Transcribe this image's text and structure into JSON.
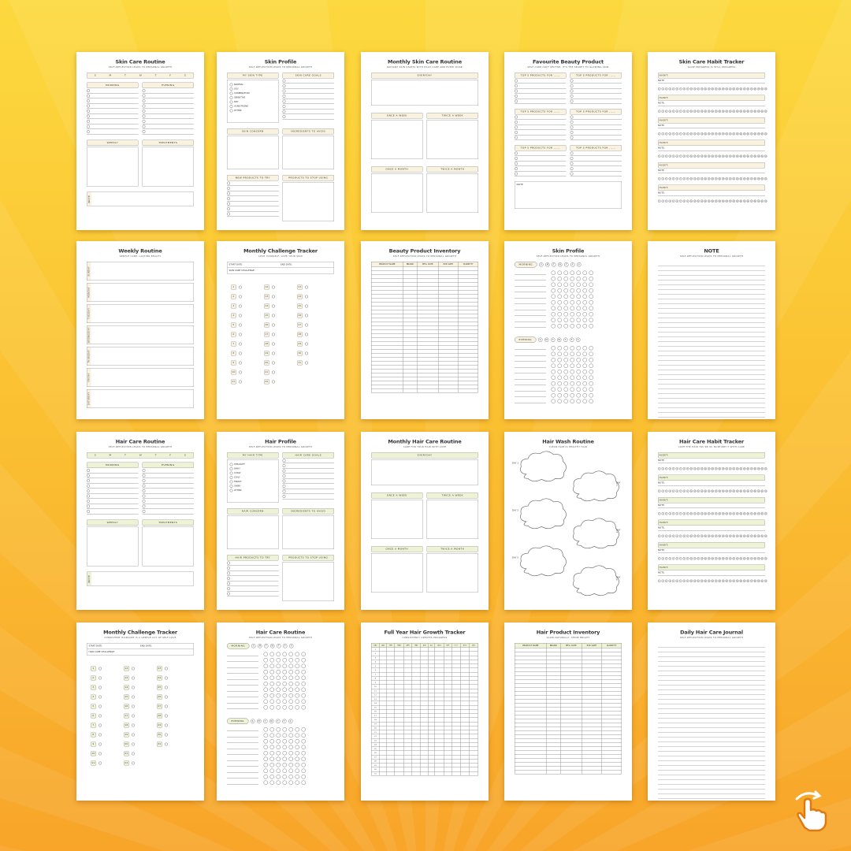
{
  "colors": {
    "skin_accent": "#f8f2df",
    "hair_accent": "#eef3d6",
    "background_top": "#fcd93e",
    "background_bottom": "#f8a52a"
  },
  "pages": [
    {
      "theme": "skin",
      "layout": "routine",
      "title": "Skin Care Routine",
      "subtitle": "SELF-REFLECTION LEADS TO PERSONAL GROWTH",
      "days": [
        "S",
        "M",
        "T",
        "W",
        "T",
        "F",
        "S"
      ],
      "morning": "MORNING",
      "evening": "EVENING",
      "weekly": "WEEKLY",
      "treatments": "TREATMENTS",
      "note": "NOTE"
    },
    {
      "theme": "skin",
      "layout": "profile",
      "title": "Skin Profile",
      "subtitle": "SELF-REFLECTION LEADS TO PERSONAL GROWTH",
      "type_header": "MY SKIN TYPE",
      "type_options": [
        "NORMAL",
        "OILY",
        "COMBINATION",
        "SENSITIVE",
        "DRY",
        "ACNE PRONE",
        "OTHER"
      ],
      "goals": "SKIN CARE GOALS",
      "concern": "SKIN CONCERN",
      "avoid": "INGREDIENTS TO AVOID",
      "try": "NEW PRODUCTS TO TRY",
      "stop": "PRODUCTS TO STOP USING"
    },
    {
      "theme": "skin",
      "layout": "monthly",
      "title": "Monthly Skin Care Routine",
      "subtitle": "RADIANT SKIN STARTS WITH DAILY CARE AND EVERY DOSE",
      "sections": [
        "EVERYDAY",
        "ONCE A WEEK",
        "TWICE A WEEK",
        "ONCE A MONTH",
        "TWICE A MONTH"
      ]
    },
    {
      "theme": "skin",
      "layout": "favourites",
      "title": "Favourite Beauty Product",
      "subtitle": "SELF-CARE ISN'T SELFISH, IT'S THE SECRET TO GLOWING SKIN",
      "headers": [
        "TOP 5 PRODUCTS FOR ......",
        "TOP 5 PRODUCTS FOR ......",
        "TOP 5 PRODUCTS FOR ......",
        "TOP 5 PRODUCTS FOR ......",
        "TOP 5 PRODUCTS FOR ......",
        "TOP 5 PRODUCTS FOR ......"
      ],
      "note": "NOTE"
    },
    {
      "theme": "skin",
      "layout": "habit",
      "title": "Skin Care Habit Tracker",
      "subtitle": "SLOW PROGRESS IS STILL PROGRESS",
      "habit": "HABIT:",
      "note": "NOTE:"
    },
    {
      "theme": "skin",
      "layout": "weekly",
      "title": "Weekly Routine",
      "subtitle": "GENTLE CARE, LASTING BEAUTY",
      "days": [
        "SUNDAY",
        "MONDAY",
        "TUESDAY",
        "WEDNESDAY",
        "THURSDAY",
        "FRIDAY",
        "SATURDAY"
      ]
    },
    {
      "theme": "skin",
      "layout": "challenge",
      "title": "Monthly Challenge Tracker",
      "subtitle": "LOVE YOURSELF, LOVE YOUR SKIN",
      "start": "START DATE:",
      "end": "END DATE:",
      "challenge": "SKIN CARE CHALLENGE:"
    },
    {
      "theme": "skin",
      "layout": "table",
      "title": "Beauty Product Inventory",
      "subtitle": "SELF-REFLECTION LEADS TO PERSONAL GROWTH",
      "columns": [
        "PRODUCT NAME",
        "BRAND",
        "MFG. DATE",
        "EXP. DATE",
        "QUANTITY"
      ]
    },
    {
      "theme": "skin",
      "layout": "circles",
      "title": "Skin Profile",
      "subtitle": "SELF-REFLECTION LEADS TO PERSONAL GROWTH",
      "morning": "MORNING",
      "evening": "EVENING",
      "days": [
        "S",
        "M",
        "T",
        "W",
        "T",
        "F",
        "S"
      ]
    },
    {
      "theme": "skin",
      "layout": "lines",
      "title": "NOTE",
      "subtitle": "SELF-REFLECTION LEADS TO PERSONAL GROWTH"
    },
    {
      "theme": "hair",
      "layout": "routine",
      "title": "Hair Care Routine",
      "subtitle": "SELF-REFLECTION LEADS TO PERSONAL GROWTH",
      "days": [
        "S",
        "M",
        "T",
        "W",
        "T",
        "F",
        "S"
      ],
      "morning": "MORNING",
      "evening": "EVENING",
      "weekly": "WEEKLY",
      "treatments": "TREATMENTS",
      "note": "NOTE"
    },
    {
      "theme": "hair",
      "layout": "profile",
      "title": "Hair Profile",
      "subtitle": "SELF-REFLECTION LEADS TO PERSONAL GROWTH",
      "type_header": "MY HAIR TYPE",
      "type_options": [
        "STRAIGHT",
        "WAVY",
        "CURLY",
        "COILY",
        "FRIZZY",
        "SHINY",
        "OTHER"
      ],
      "goals": "HAIR CARE GOALS",
      "concern": "HAIR CONCERN",
      "avoid": "INGREDIENTS TO AVOID",
      "try": "HAIR PRODUCTS TO TRY",
      "stop": "PRODUCTS TO STOP USING"
    },
    {
      "theme": "hair",
      "layout": "monthly",
      "title": "Monthly Hair Care Routine",
      "subtitle": "CARE FOR YOUR HAIR WITH LOVE",
      "sections": [
        "EVERYDAY",
        "ONCE A WEEK",
        "TWICE A WEEK",
        "ONCE A MONTH",
        "TWICE A MONTH"
      ]
    },
    {
      "theme": "hair",
      "layout": "clouds",
      "title": "Hair Wash Routine",
      "subtitle": "CLEAN HAIR IS HEALTHY HAIR",
      "days": [
        "DAY 1",
        "DAY 2",
        "DAY 3",
        "DAY 4",
        "DAY 5",
        "DAY 6"
      ]
    },
    {
      "theme": "hair",
      "layout": "habit",
      "title": "Hair Care Habit Tracker",
      "subtitle": "LOVE THE HAIR YOU'RE IN, NURTURE IT WITH CARE",
      "habit": "HABIT:",
      "note": "NOTE:"
    },
    {
      "theme": "hair",
      "layout": "challenge",
      "title": "Monthly Challenge Tracker",
      "subtitle": "CONSISTENT HAIRCARE IS A GENTLE ACT OF SELF-LOVE",
      "start": "START DATE:",
      "end": "END DATE:",
      "challenge": "HAIR CARE CHALLENGE:"
    },
    {
      "theme": "hair",
      "layout": "circles",
      "title": "Hair Care Routine",
      "subtitle": "SELF-REFLECTION LEADS TO PERSONAL GROWTH",
      "morning": "MORNING",
      "evening": "EVENING",
      "days": [
        "S",
        "M",
        "T",
        "W",
        "T",
        "F",
        "S"
      ]
    },
    {
      "theme": "hair",
      "layout": "grid",
      "title": "Full Year Hair Growth Tracker",
      "subtitle": "CONSISTENCY CREATES PROGRESS",
      "columns": [
        "DAY",
        "JAN",
        "FEB",
        "MAR",
        "APR",
        "MAY",
        "JUN",
        "JUL",
        "AUG",
        "SEP",
        "OCT",
        "NOV",
        "DEC"
      ]
    },
    {
      "theme": "hair",
      "layout": "table",
      "title": "Hair Product Inventory",
      "subtitle": "GLOW NATURALLY, SHINE BRIGHT",
      "columns": [
        "PRODUCT NAME",
        "BRAND",
        "MFG. DATE",
        "EXP. DATE",
        "QUANTITY"
      ]
    },
    {
      "theme": "hair",
      "layout": "lines",
      "title": "Daily Hair Care Journal",
      "subtitle": "SELF-REFLECTION LEADS TO PERSONAL GROWTH"
    }
  ]
}
